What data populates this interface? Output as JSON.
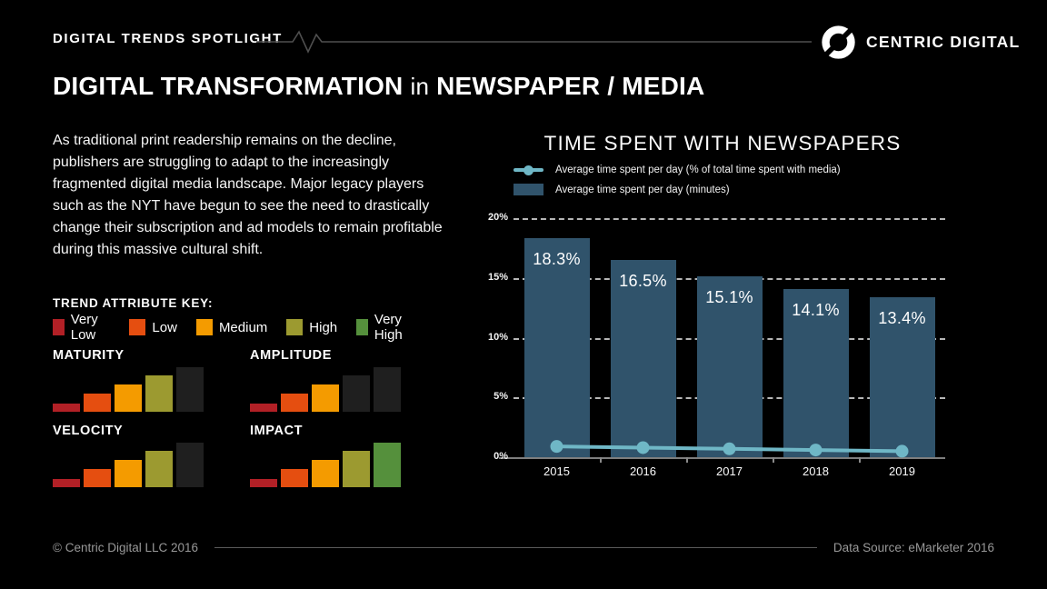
{
  "colors": {
    "background": "#000000",
    "header_line": "#4f4f4f",
    "unfilled_bar": "#1f1f1f",
    "chart_bar": "#30536b",
    "chart_line": "#6fb7c6",
    "grid": "#d8d8d8",
    "axis": "#7e7e7e",
    "muted_text": "#989898"
  },
  "header": {
    "eyebrow": "DIGITAL TRENDS SPOTLIGHT",
    "brand": "CENTRIC DIGITAL"
  },
  "title": {
    "part1": "DIGITAL TRANSFORMATION",
    "part2": "in",
    "part3": "NEWSPAPER / MEDIA"
  },
  "intro": "As traditional print readership remains on the decline, publishers are struggling to adapt to the increasingly fragmented digital media landscape. Major legacy players such as the NYT have begun to see the need to drastically change their subscription and ad models to remain profitable during this massive cultural shift.",
  "trend_key": {
    "heading": "TREND ATTRIBUTE KEY:",
    "levels": [
      {
        "label": "Very Low",
        "color": "#b22026"
      },
      {
        "label": "Low",
        "color": "#e54e10"
      },
      {
        "label": "Medium",
        "color": "#f49b00"
      },
      {
        "label": "High",
        "color": "#9c9a30"
      },
      {
        "label": "Very High",
        "color": "#55903c"
      }
    ]
  },
  "trend_attributes": [
    {
      "name": "MATURITY",
      "level": 4,
      "level_label": "High"
    },
    {
      "name": "AMPLITUDE",
      "level": 3,
      "level_label": "Medium"
    },
    {
      "name": "VELOCITY",
      "level": 4,
      "level_label": "High"
    },
    {
      "name": "IMPACT",
      "level": 5,
      "level_label": "Very High"
    }
  ],
  "chart_data": {
    "type": "bar",
    "title": "TIME SPENT WITH NEWSPAPERS",
    "categories": [
      "2015",
      "2016",
      "2017",
      "2018",
      "2019"
    ],
    "series": [
      {
        "name": "Average time spent per day (% of total time spent with media)",
        "type": "line",
        "values": [
          0.9,
          0.8,
          0.7,
          0.6,
          0.5
        ],
        "color": "#6fb7c6"
      },
      {
        "name": "Average time spent per day (minutes)",
        "type": "bar",
        "values": [
          18.3,
          16.5,
          15.1,
          14.1,
          13.4
        ],
        "labels": [
          "18.3%",
          "16.5%",
          "15.1%",
          "14.1%",
          "13.4%"
        ],
        "color": "#30536b"
      }
    ],
    "xlabel": "",
    "ylabel": "",
    "ylim": [
      0,
      20
    ],
    "yticks": [
      0,
      5,
      10,
      15,
      20
    ],
    "ytick_labels": [
      "0%",
      "5%",
      "10%",
      "15%",
      "20%"
    ],
    "grid": "horizontal-dashed",
    "legend_position": "top-left"
  },
  "footer": {
    "left": "© Centric Digital LLC 2016",
    "right": "Data Source: eMarketer 2016"
  }
}
